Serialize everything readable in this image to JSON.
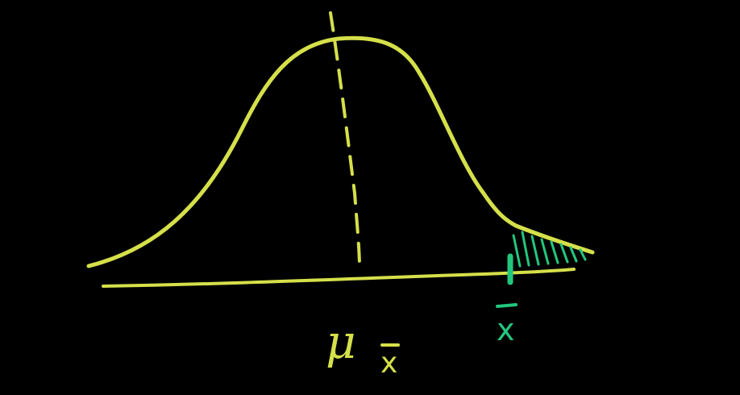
{
  "diagram": {
    "mean_label": "μ",
    "mean_subscript": "x",
    "sample_label": "x"
  },
  "colors": {
    "background": "#000000",
    "curve": "#d5e04a",
    "axis": "#d5e04a",
    "mean_line": "#d5e04a",
    "sample_marker": "#22c77e",
    "shading": "#22c77e"
  },
  "icons": {
    "bell-curve": "normal-distribution-curve",
    "tail-shading": "hatched-area"
  }
}
